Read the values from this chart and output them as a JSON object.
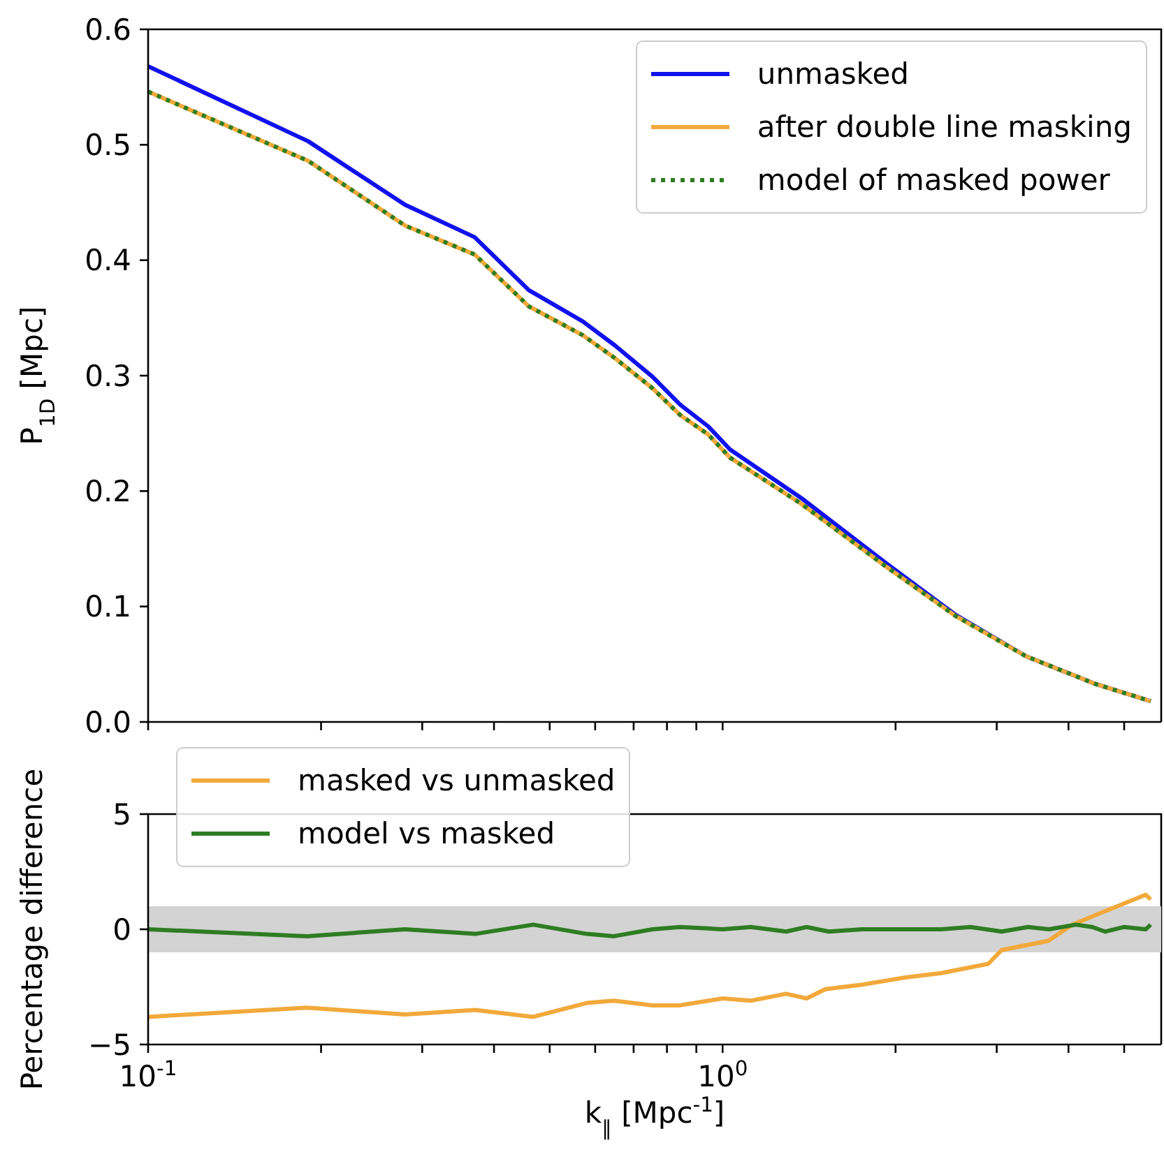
{
  "chart_data": [
    {
      "type": "line",
      "ylabel": "P$_{1D}$ [Mpc]",
      "xlim": [
        0.1,
        5.8
      ],
      "log": "x",
      "tick_labels": "y",
      "legend": "top right",
      "xticks": [
        {
          "value": 0.1,
          "label": null
        },
        {
          "value": 0.2,
          "label": null
        },
        {
          "value": 0.3,
          "label": null
        },
        {
          "value": 0.4,
          "label": null
        },
        {
          "value": 0.5,
          "label": null
        },
        {
          "value": 0.6,
          "label": null
        },
        {
          "value": 0.7,
          "label": null
        },
        {
          "value": 0.8,
          "label": null
        },
        {
          "value": 0.9,
          "label": null
        },
        {
          "value": 1,
          "label": null
        },
        {
          "value": 2,
          "label": null
        },
        {
          "value": 3,
          "label": null
        },
        {
          "value": 4,
          "label": null
        },
        {
          "value": 5,
          "label": null
        }
      ],
      "ylim": [
        0,
        0.6
      ],
      "yticks": [
        {
          "value": 0,
          "label": "0.0"
        },
        0.1,
        0.2,
        0.3,
        0.4,
        0.5,
        0.6
      ],
      "series": [
        {
          "name": "unmasked",
          "color": "#1111ee",
          "x": [
            0.1,
            0.19,
            0.28,
            0.37,
            0.46,
            0.571,
            0.65,
            0.755,
            0.843,
            0.944,
            1.03,
            1.37,
            1.92,
            2.54,
            3.37,
            4.45,
            5.56
          ],
          "values": [
            0.568,
            0.503,
            0.448,
            0.42,
            0.374,
            0.347,
            0.326,
            0.299,
            0.275,
            0.256,
            0.236,
            0.194,
            0.138,
            0.093,
            0.057,
            0.033,
            0.018
          ]
        },
        {
          "name": "after double line masking",
          "color": "#f2a93b",
          "x": [
            0.1,
            0.19,
            0.28,
            0.37,
            0.46,
            0.571,
            0.65,
            0.755,
            0.843,
            0.944,
            1.03,
            1.37,
            1.92,
            2.54,
            3.37,
            4.45,
            5.56
          ],
          "values": [
            0.546,
            0.486,
            0.43,
            0.405,
            0.36,
            0.335,
            0.315,
            0.289,
            0.266,
            0.249,
            0.229,
            0.189,
            0.135,
            0.092,
            0.057,
            0.033,
            0.018
          ]
        },
        {
          "name": "model of masked power",
          "line_style": "dotted",
          "color": "#2e7d22",
          "x": [
            0.1,
            0.19,
            0.28,
            0.37,
            0.46,
            0.571,
            0.65,
            0.755,
            0.843,
            0.944,
            1.03,
            1.37,
            1.92,
            2.54,
            3.37,
            4.45,
            5.56
          ],
          "values": [
            0.546,
            0.486,
            0.43,
            0.405,
            0.36,
            0.335,
            0.315,
            0.289,
            0.266,
            0.249,
            0.229,
            0.189,
            0.135,
            0.092,
            0.057,
            0.033,
            0.018
          ]
        }
      ]
    },
    {
      "type": "line",
      "xlabel": "k$_{∥}$ [Mpc$^{-1}$]",
      "ylabel": "Percentage difference",
      "xlim": [
        0.1,
        5.8
      ],
      "log": "x",
      "legend": "top left",
      "xticks": [
        {
          "value": 0.1,
          "label": "10$^{-1}$"
        },
        {
          "value": 0.2,
          "label": null
        },
        {
          "value": 0.3,
          "label": null
        },
        {
          "value": 0.4,
          "label": null
        },
        {
          "value": 0.5,
          "label": null
        },
        {
          "value": 0.6,
          "label": null
        },
        {
          "value": 0.7,
          "label": null
        },
        {
          "value": 0.8,
          "label": null
        },
        {
          "value": 0.9,
          "label": null
        },
        {
          "value": 1,
          "label": "10$^{0}$"
        },
        {
          "value": 2,
          "label": null
        },
        {
          "value": 3,
          "label": null
        },
        {
          "value": 4,
          "label": null
        },
        {
          "value": 5,
          "label": null
        }
      ],
      "ylim": [
        -5,
        5
      ],
      "yticks": [
        {
          "value": -5,
          "label": "−5"
        },
        0,
        5
      ],
      "bands": [
        {
          "axis": "y",
          "from": -1,
          "to": 1,
          "color": "#d3d3d3"
        }
      ],
      "series": [
        {
          "name": "masked vs unmasked",
          "color": "#f2a93b",
          "x": [
            0.1,
            0.189,
            0.28,
            0.371,
            0.468,
            0.58,
            0.647,
            0.755,
            0.843,
            1.0,
            1.12,
            1.29,
            1.4,
            1.51,
            1.75,
            2.07,
            2.4,
            2.9,
            3.06,
            3.69,
            4.06,
            4.54,
            5.45,
            5.56
          ],
          "values": [
            -3.8,
            -3.4,
            -3.7,
            -3.5,
            -3.8,
            -3.2,
            -3.1,
            -3.3,
            -3.3,
            -3.0,
            -3.1,
            -2.8,
            -3.0,
            -2.6,
            -2.4,
            -2.1,
            -1.9,
            -1.5,
            -0.9,
            -0.5,
            0.2,
            0.7,
            1.5,
            1.3
          ]
        },
        {
          "name": "model vs masked",
          "color": "#2e7d22",
          "x": [
            0.1,
            0.189,
            0.28,
            0.371,
            0.468,
            0.58,
            0.647,
            0.755,
            0.843,
            1.0,
            1.12,
            1.29,
            1.4,
            1.53,
            1.75,
            2.07,
            2.4,
            2.7,
            3.06,
            3.4,
            3.7,
            4.12,
            4.4,
            4.63,
            5.0,
            5.45,
            5.56
          ],
          "values": [
            0.0,
            -0.3,
            0.0,
            -0.2,
            0.2,
            -0.2,
            -0.3,
            0.0,
            0.1,
            0.0,
            0.1,
            -0.1,
            0.1,
            -0.1,
            0.0,
            0.0,
            0.0,
            0.1,
            -0.1,
            0.1,
            0.0,
            0.2,
            0.1,
            -0.1,
            0.1,
            0.0,
            0.2
          ]
        }
      ]
    }
  ]
}
